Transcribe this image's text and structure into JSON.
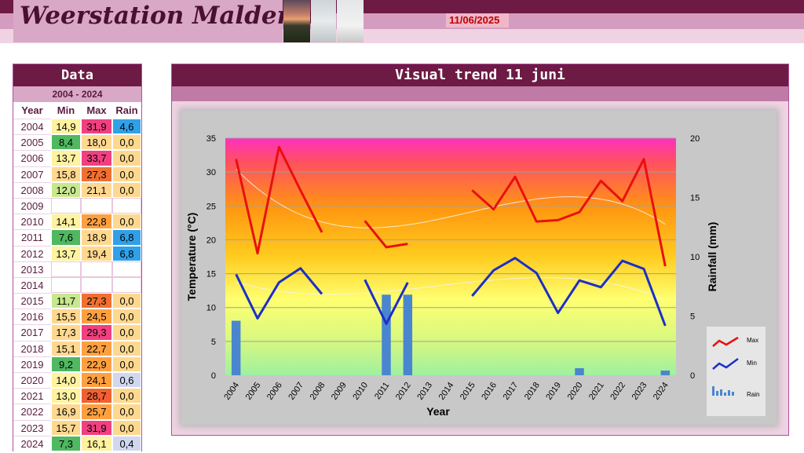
{
  "site": {
    "title": "Weerstation Malderen",
    "date": "11/06/2025"
  },
  "data_panel": {
    "title": "Data",
    "period": "2004 - 2024",
    "columns": [
      "Year",
      "Min",
      "Max",
      "Rain"
    ],
    "rows": [
      {
        "year": "2004",
        "min": "14,9",
        "max": "31,9",
        "rain": "4,6",
        "min_color": "#fff2a0",
        "max_color": "#f04080",
        "rain_color": "#30a0e8"
      },
      {
        "year": "2005",
        "min": "8,4",
        "max": "18,0",
        "rain": "0,0",
        "min_color": "#50b860",
        "max_color": "#ffd890",
        "rain_color": "#ffd890"
      },
      {
        "year": "2006",
        "min": "13,7",
        "max": "33,7",
        "rain": "0,0",
        "min_color": "#fff2a0",
        "max_color": "#f04080",
        "rain_color": "#ffd890"
      },
      {
        "year": "2007",
        "min": "15,8",
        "max": "27,3",
        "rain": "0,0",
        "min_color": "#ffd890",
        "max_color": "#f07030",
        "rain_color": "#ffd890"
      },
      {
        "year": "2008",
        "min": "12,0",
        "max": "21,1",
        "rain": "0,0",
        "min_color": "#c8e890",
        "max_color": "#ffd890",
        "rain_color": "#ffd890"
      },
      {
        "year": "2009",
        "min": "",
        "max": "",
        "rain": "",
        "min_color": "",
        "max_color": "",
        "rain_color": ""
      },
      {
        "year": "2010",
        "min": "14,1",
        "max": "22,8",
        "rain": "0,0",
        "min_color": "#fff2a0",
        "max_color": "#ffa040",
        "rain_color": "#ffd890"
      },
      {
        "year": "2011",
        "min": "7,6",
        "max": "18,9",
        "rain": "6,8",
        "min_color": "#50b860",
        "max_color": "#ffd890",
        "rain_color": "#30a0e8"
      },
      {
        "year": "2012",
        "min": "13,7",
        "max": "19,4",
        "rain": "6,8",
        "min_color": "#fff2a0",
        "max_color": "#ffd890",
        "rain_color": "#30a0e8"
      },
      {
        "year": "2013",
        "min": "",
        "max": "",
        "rain": "",
        "min_color": "",
        "max_color": "",
        "rain_color": ""
      },
      {
        "year": "2014",
        "min": "",
        "max": "",
        "rain": "",
        "min_color": "",
        "max_color": "",
        "rain_color": ""
      },
      {
        "year": "2015",
        "min": "11,7",
        "max": "27,3",
        "rain": "0,0",
        "min_color": "#c8e890",
        "max_color": "#f07030",
        "rain_color": "#ffd890"
      },
      {
        "year": "2016",
        "min": "15,5",
        "max": "24,5",
        "rain": "0,0",
        "min_color": "#ffd890",
        "max_color": "#ffa040",
        "rain_color": "#ffd890"
      },
      {
        "year": "2017",
        "min": "17,3",
        "max": "29,3",
        "rain": "0,0",
        "min_color": "#ffd890",
        "max_color": "#f04080",
        "rain_color": "#ffd890"
      },
      {
        "year": "2018",
        "min": "15,1",
        "max": "22,7",
        "rain": "0,0",
        "min_color": "#ffd890",
        "max_color": "#ffa040",
        "rain_color": "#ffd890"
      },
      {
        "year": "2019",
        "min": "9,2",
        "max": "22,9",
        "rain": "0,0",
        "min_color": "#50b860",
        "max_color": "#ffa040",
        "rain_color": "#ffd890"
      },
      {
        "year": "2020",
        "min": "14,0",
        "max": "24,1",
        "rain": "0,6",
        "min_color": "#fff2a0",
        "max_color": "#ffa040",
        "rain_color": "#d0d8f0"
      },
      {
        "year": "2021",
        "min": "13,0",
        "max": "28,7",
        "rain": "0,0",
        "min_color": "#fff2a0",
        "max_color": "#f06030",
        "rain_color": "#ffd890"
      },
      {
        "year": "2022",
        "min": "16,9",
        "max": "25,7",
        "rain": "0,0",
        "min_color": "#ffd890",
        "max_color": "#ffa040",
        "rain_color": "#ffd890"
      },
      {
        "year": "2023",
        "min": "15,7",
        "max": "31,9",
        "rain": "0,0",
        "min_color": "#ffd890",
        "max_color": "#f04080",
        "rain_color": "#ffd890"
      },
      {
        "year": "2024",
        "min": "7,3",
        "max": "16,1",
        "rain": "0,4",
        "min_color": "#50b860",
        "max_color": "#fff2a0",
        "rain_color": "#d0d8f0"
      }
    ]
  },
  "chart_panel": {
    "title": "Visual trend 11 juni"
  },
  "chart_data": {
    "type": "line",
    "xlabel": "Year",
    "ylabel": "Temperature (°C)",
    "y2label": "Rainfall (mm)",
    "ylim": [
      0,
      35
    ],
    "y2lim": [
      0,
      20
    ],
    "yticks": [
      "0",
      "5",
      "10",
      "15",
      "20",
      "25",
      "30",
      "35"
    ],
    "y2ticks": [
      "0",
      "5",
      "10",
      "15",
      "20"
    ],
    "categories": [
      "2004",
      "2005",
      "2006",
      "2007",
      "2008",
      "2009",
      "2010",
      "2011",
      "2012",
      "2013",
      "2014",
      "2015",
      "2016",
      "2017",
      "2018",
      "2019",
      "2020",
      "2021",
      "2022",
      "2023",
      "2024"
    ],
    "series": [
      {
        "name": "Max",
        "kind": "line",
        "color": "#e81010",
        "values": [
          31.9,
          18.0,
          33.7,
          27.3,
          21.1,
          null,
          22.8,
          18.9,
          19.4,
          null,
          null,
          27.3,
          24.5,
          29.3,
          22.7,
          22.9,
          24.1,
          28.7,
          25.7,
          31.9,
          16.1
        ]
      },
      {
        "name": "Min",
        "kind": "line",
        "color": "#1c2fc8",
        "values": [
          14.9,
          8.4,
          13.7,
          15.8,
          12.0,
          null,
          14.1,
          7.6,
          13.7,
          null,
          null,
          11.7,
          15.5,
          17.3,
          15.1,
          9.2,
          14.0,
          13.0,
          16.9,
          15.7,
          7.3
        ]
      },
      {
        "name": "Rain",
        "kind": "bar",
        "axis": "right",
        "color": "#4a86cf",
        "values": [
          4.6,
          0.0,
          0.0,
          0.0,
          0.0,
          null,
          0.0,
          6.8,
          6.8,
          null,
          null,
          0.0,
          0.0,
          0.0,
          0.0,
          0.0,
          0.6,
          0.0,
          0.0,
          0.0,
          0.4
        ]
      }
    ],
    "trend_lines": true,
    "grid": true,
    "legend": "right"
  }
}
